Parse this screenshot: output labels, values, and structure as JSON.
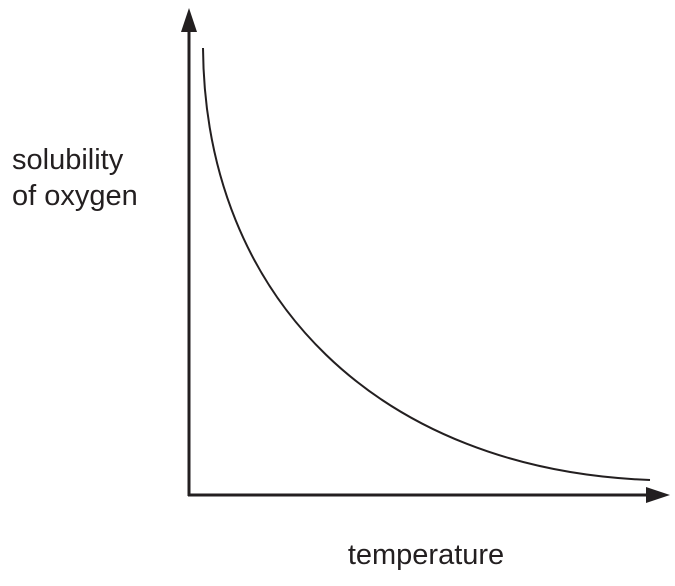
{
  "y_axis": {
    "label_lines": [
      "solubility",
      "of oxygen"
    ]
  },
  "x_axis": {
    "label": "temperature"
  }
}
